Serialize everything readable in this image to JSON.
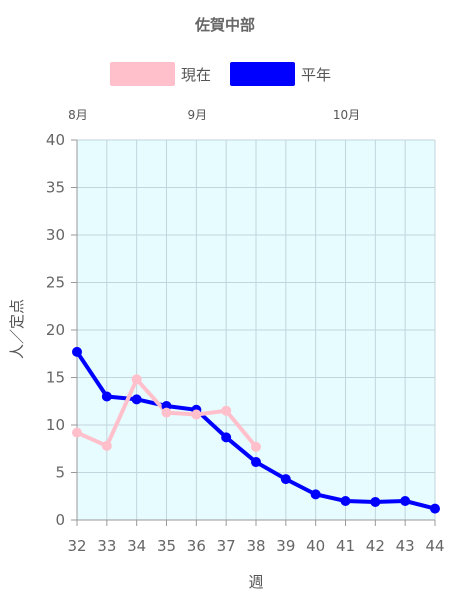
{
  "chart_data": {
    "type": "line",
    "title": "佐賀中部",
    "xlabel": "週",
    "ylabel": "人／定点",
    "x": [
      32,
      33,
      34,
      35,
      36,
      37,
      38,
      39,
      40,
      41,
      42,
      43,
      44
    ],
    "ylim": [
      0,
      40
    ],
    "yticks": [
      0,
      5,
      10,
      15,
      20,
      25,
      30,
      35,
      40
    ],
    "grid": true,
    "legend_position": "top",
    "month_labels": [
      {
        "label": "8月",
        "at_week": 32
      },
      {
        "label": "9月",
        "at_week": 36
      },
      {
        "label": "10月",
        "at_week": 41
      }
    ],
    "plot_background": "#e6fcfe",
    "series": [
      {
        "name": "現在",
        "color": "#ffc0cb",
        "values": [
          9.2,
          7.8,
          14.8,
          11.3,
          11.1,
          11.5,
          7.7,
          null,
          null,
          null,
          null,
          null,
          null
        ]
      },
      {
        "name": "平年",
        "color": "#0000ff",
        "values": [
          17.7,
          13.0,
          12.7,
          12.0,
          11.6,
          8.7,
          6.1,
          4.3,
          2.7,
          2.0,
          1.9,
          2.0,
          1.2
        ]
      }
    ]
  }
}
